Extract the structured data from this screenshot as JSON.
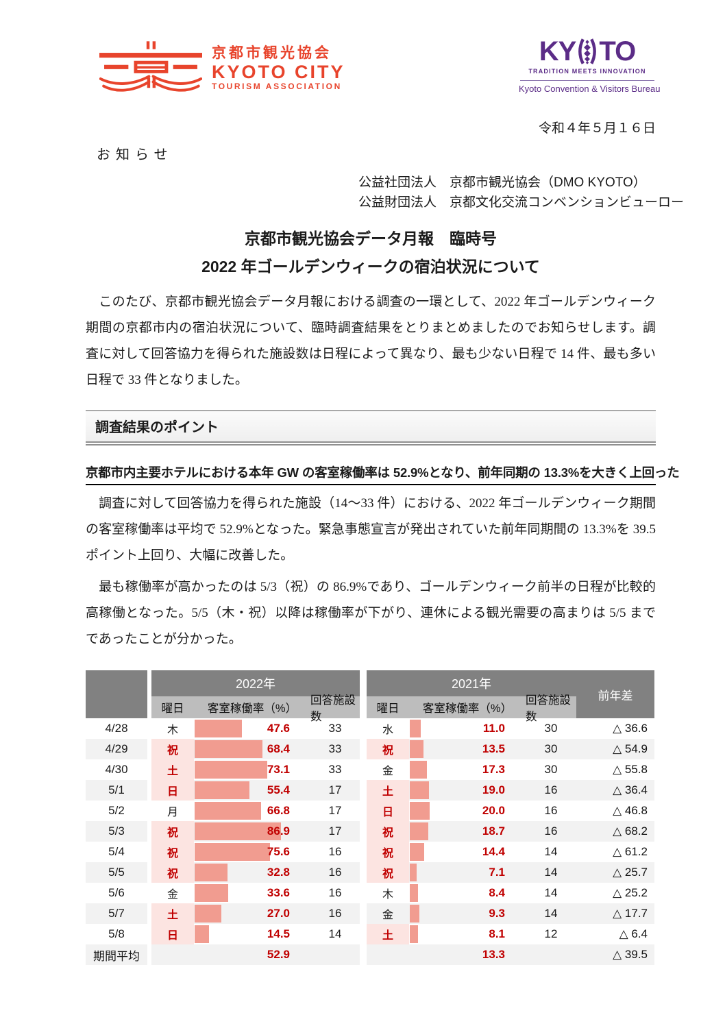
{
  "letterhead": {
    "date_line": "令和４年５月１６日",
    "notice": "お知らせ",
    "orgs": [
      "公益社団法人　京都市観光協会（DMO KYOTO）",
      "公益財団法人　京都文化交流コンベンションビューロー"
    ]
  },
  "logos": {
    "tourism_association": {
      "jp": "京都市観光協会",
      "en_line1": "KYOTO CITY",
      "en_line2": "TOURISM ASSOCIATION",
      "color": "#E8442C"
    },
    "convention_bureau": {
      "word_left": "KY",
      "word_right": "TO",
      "tagline": "TRADITION MEETS INNOVATION",
      "subtitle": "Kyoto Convention & Visitors Bureau",
      "color": "#5B2C87"
    }
  },
  "title": {
    "line1": "京都市観光協会データ月報　臨時号",
    "line2": "2022 年ゴールデンウィークの宿泊状況について"
  },
  "intro": "　このたび、京都市観光協会データ月報における調査の一環として、2022 年ゴールデンウィーク期間の京都市内の宿泊状況について、臨時調査結果をとりまとめましたのでお知らせします。調査に対して回答協力を得られた施設数は日程によって異なり、最も少ない日程で 14 件、最も多い日程で 33 件となりました。",
  "section": {
    "header": "調査結果のポイント",
    "headline": "京都市内主要ホテルにおける本年 GW の客室稼働率は 52.9%となり、前年同期の 13.3%を大きく上回った",
    "para1": "　調査に対して回答協力を得られた施設（14～33 件）における、2022 年ゴールデンウィーク期間の客室稼働率は平均で 52.9%となった。緊急事態宣言が発出されていた前年同期間の 13.3%を 39.5 ポイント上回り、大幅に改善した。",
    "para2": "　最も稼働率が高かったのは 5/3（祝）の 86.9%であり、ゴールデンウィーク前半の日程が比較的高稼働となった。5/5（木・祝）以降は稼働率が下がり、連休による観光需要の高まりは 5/5 までであったことが分かった。"
  },
  "chart_data": {
    "type": "table",
    "col_groups": [
      "2022年",
      "2021年"
    ],
    "diff_header": "前年差",
    "sub_headers": [
      "曜日",
      "客室稼働率（%）",
      "回答施設数"
    ],
    "avg_label": "期間平均",
    "bar_axis": {
      "min": 0,
      "max": 100,
      "unit": "%"
    },
    "rows": [
      {
        "date": "4/28",
        "wd_2022": "木",
        "hol_2022": false,
        "rate_2022": "47.6",
        "resp_2022": "33",
        "wd_2021": "水",
        "hol_2021": false,
        "rate_2021": "11.0",
        "resp_2021": "30",
        "diff": "△ 36.6"
      },
      {
        "date": "4/29",
        "wd_2022": "祝",
        "hol_2022": true,
        "rate_2022": "68.4",
        "resp_2022": "33",
        "wd_2021": "祝",
        "hol_2021": true,
        "rate_2021": "13.5",
        "resp_2021": "30",
        "diff": "△ 54.9"
      },
      {
        "date": "4/30",
        "wd_2022": "土",
        "hol_2022": true,
        "rate_2022": "73.1",
        "resp_2022": "33",
        "wd_2021": "金",
        "hol_2021": false,
        "rate_2021": "17.3",
        "resp_2021": "30",
        "diff": "△ 55.8"
      },
      {
        "date": "5/1",
        "wd_2022": "日",
        "hol_2022": true,
        "rate_2022": "55.4",
        "resp_2022": "17",
        "wd_2021": "土",
        "hol_2021": true,
        "rate_2021": "19.0",
        "resp_2021": "16",
        "diff": "△ 36.4"
      },
      {
        "date": "5/2",
        "wd_2022": "月",
        "hol_2022": false,
        "rate_2022": "66.8",
        "resp_2022": "17",
        "wd_2021": "日",
        "hol_2021": true,
        "rate_2021": "20.0",
        "resp_2021": "16",
        "diff": "△ 46.8"
      },
      {
        "date": "5/3",
        "wd_2022": "祝",
        "hol_2022": true,
        "rate_2022": "86.9",
        "resp_2022": "17",
        "wd_2021": "祝",
        "hol_2021": true,
        "rate_2021": "18.7",
        "resp_2021": "16",
        "diff": "△ 68.2"
      },
      {
        "date": "5/4",
        "wd_2022": "祝",
        "hol_2022": true,
        "rate_2022": "75.6",
        "resp_2022": "16",
        "wd_2021": "祝",
        "hol_2021": true,
        "rate_2021": "14.4",
        "resp_2021": "14",
        "diff": "△ 61.2"
      },
      {
        "date": "5/5",
        "wd_2022": "祝",
        "hol_2022": true,
        "rate_2022": "32.8",
        "resp_2022": "16",
        "wd_2021": "祝",
        "hol_2021": true,
        "rate_2021": "7.1",
        "resp_2021": "14",
        "diff": "△ 25.7"
      },
      {
        "date": "5/6",
        "wd_2022": "金",
        "hol_2022": false,
        "rate_2022": "33.6",
        "resp_2022": "16",
        "wd_2021": "木",
        "hol_2021": false,
        "rate_2021": "8.4",
        "resp_2021": "14",
        "diff": "△ 25.2"
      },
      {
        "date": "5/7",
        "wd_2022": "土",
        "hol_2022": true,
        "rate_2022": "27.0",
        "resp_2022": "16",
        "wd_2021": "金",
        "hol_2021": false,
        "rate_2021": "9.3",
        "resp_2021": "14",
        "diff": "△ 17.7"
      },
      {
        "date": "5/8",
        "wd_2022": "日",
        "hol_2022": true,
        "rate_2022": "14.5",
        "resp_2022": "14",
        "wd_2021": "土",
        "hol_2021": true,
        "rate_2021": "8.1",
        "resp_2021": "12",
        "diff": "△ 6.4"
      }
    ],
    "avg": {
      "rate_2022": "52.9",
      "rate_2021": "13.3",
      "diff": "△ 39.5"
    },
    "colors": {
      "bar": "#F19C90",
      "holiday_bg": "#FCE4E1",
      "value_red": "#C00000",
      "header_dark": "#818181",
      "header_mid": "#BDBDBD",
      "stripe": "#F2F2F2"
    }
  }
}
